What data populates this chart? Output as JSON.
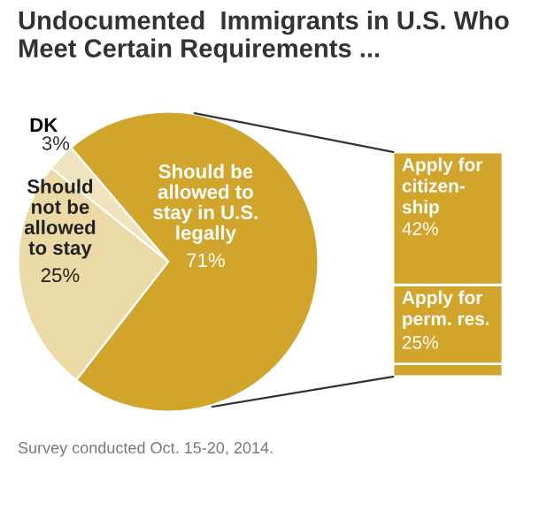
{
  "chart_data": [
    {
      "type": "pie",
      "title": "Undocumented  Immigrants in U.S. Who\nMeet Certain Requirements ...",
      "categories": [
        "Should be\nallowed to\nstay in U.S.\nlegally",
        "DK",
        "Should\nnot be\nallowed\nto stay"
      ],
      "values": [
        71,
        3,
        25
      ],
      "value_labels": [
        "71%",
        "3%",
        "25%"
      ],
      "colors": [
        "#d1a42c",
        "#f0e4c0",
        "#ebd9a6"
      ],
      "annotations": [
        "Survey conducted Oct. 15-20, 2014."
      ]
    },
    {
      "type": "bar",
      "stacked": true,
      "categories": [
        null
      ],
      "series": [
        {
          "color": "#d1a42c",
          "values": [
            4
          ],
          "value_labels": [
            null
          ]
        },
        {
          "name": "Apply for\nperm. res.",
          "color": "#d1a42c",
          "values": [
            25
          ],
          "value_labels": [
            "25%"
          ]
        },
        {
          "name": "Apply for\ncitizen-\nship",
          "color": "#d1a42c",
          "values": [
            42
          ],
          "value_labels": [
            "42%"
          ]
        }
      ]
    }
  ]
}
